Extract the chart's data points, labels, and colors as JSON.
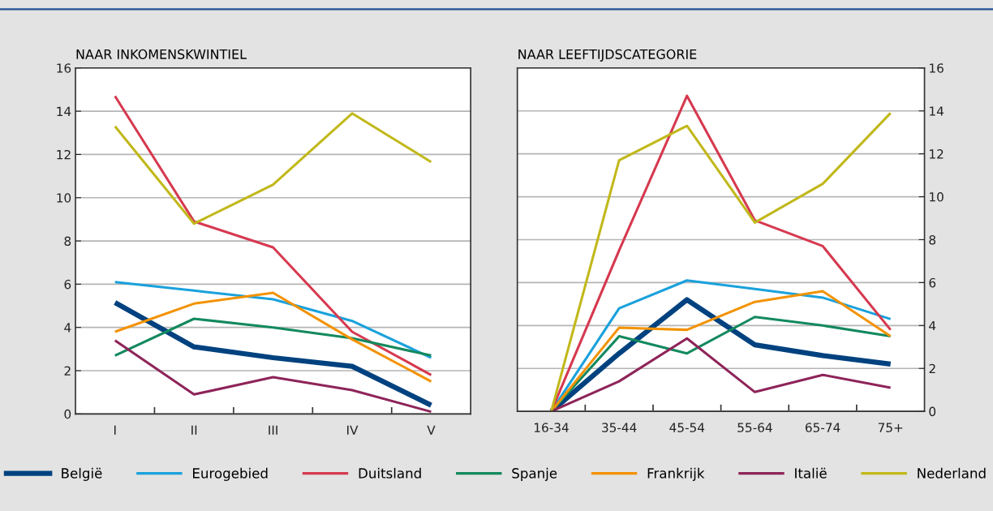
{
  "chart_data": [
    {
      "type": "line",
      "title": "NAAR INKOMENSKWINTIEL",
      "categories": [
        "I",
        "II",
        "III",
        "IV",
        "V"
      ],
      "ylim": [
        0,
        16
      ],
      "yticks": [
        0,
        2,
        4,
        6,
        8,
        10,
        12,
        14,
        16
      ],
      "grid": "y",
      "legend": "bottom",
      "marker": "none",
      "line_style": "solid",
      "series": [
        {
          "name": "België",
          "color": "#00427f",
          "values": [
            5.15,
            3.1,
            2.6,
            2.2,
            0.4
          ]
        },
        {
          "name": "Eurogebied",
          "color": "#1aa1dc",
          "values": [
            6.1,
            5.7,
            5.3,
            4.3,
            2.6
          ]
        },
        {
          "name": "Duitsland",
          "color": "#d6394f",
          "values": [
            14.7,
            8.9,
            7.7,
            3.8,
            1.8
          ]
        },
        {
          "name": "Spanje",
          "color": "#13895e",
          "values": [
            2.7,
            4.4,
            4.0,
            3.5,
            2.7
          ]
        },
        {
          "name": "Frankrijk",
          "color": "#f39200",
          "values": [
            3.8,
            5.1,
            5.6,
            3.45,
            1.5
          ]
        },
        {
          "name": "Italië",
          "color": "#8e2459",
          "values": [
            3.4,
            0.9,
            1.7,
            1.1,
            0.1
          ]
        },
        {
          "name": "Nederland",
          "color": "#c1b81a",
          "values": [
            13.3,
            8.8,
            10.6,
            13.9,
            11.65
          ]
        }
      ]
    },
    {
      "type": "line",
      "title": "NAAR LEEFTIJDSCATEGORIE",
      "categories": [
        "16-34",
        "35-44",
        "45-54",
        "55-64",
        "65-74",
        "75+"
      ],
      "ylim": [
        0,
        16
      ],
      "yticks": [
        0,
        2,
        4,
        6,
        8,
        10,
        12,
        14,
        16
      ],
      "grid": "y",
      "legend": false,
      "marker": "none",
      "line_style": "solid",
      "series": [
        {
          "color": "#00427f",
          "values": [
            0,
            2.7,
            5.2,
            3.1,
            2.6,
            2.2
          ]
        },
        {
          "color": "#1aa1dc",
          "values": [
            0,
            4.8,
            6.1,
            5.7,
            5.3,
            4.3
          ]
        },
        {
          "color": "#d6394f",
          "values": [
            0,
            7.5,
            14.7,
            8.9,
            7.7,
            3.8
          ]
        },
        {
          "color": "#13895e",
          "values": [
            0,
            3.5,
            2.7,
            4.4,
            4.0,
            3.5
          ]
        },
        {
          "color": "#f39200",
          "values": [
            0,
            3.9,
            3.8,
            5.1,
            5.6,
            3.5
          ]
        },
        {
          "color": "#8e2459",
          "values": [
            0,
            1.4,
            3.4,
            0.9,
            1.7,
            1.1
          ]
        },
        {
          "color": "#c1b81a",
          "values": [
            0,
            11.7,
            13.3,
            8.8,
            10.6,
            13.9
          ]
        }
      ]
    }
  ]
}
